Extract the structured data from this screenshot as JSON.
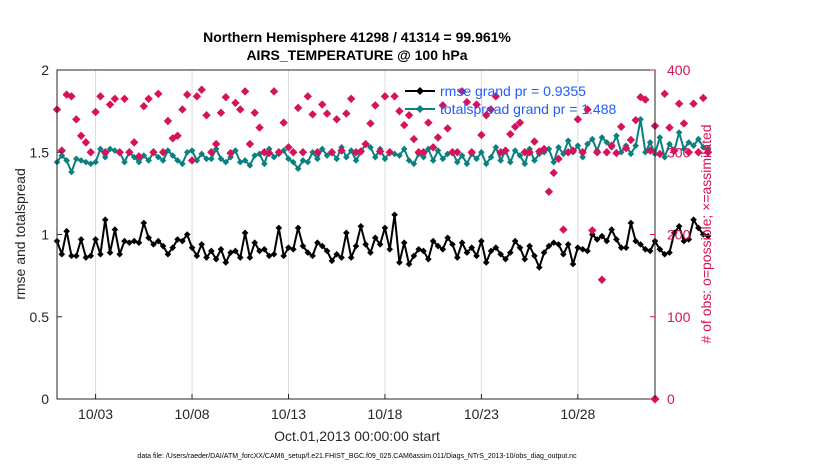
{
  "chart_data": {
    "type": "line",
    "title": "Northern Hemisphere 41298 / 41314 = 99.961%",
    "subtitle": "AIRS_TEMPERATURE @ 100 hPa",
    "xlabel": "Oct.01,2013 00:00:00 start",
    "ylabel_left": "rmse and totalspread",
    "ylabel_right": "# of obs: o=possible; ×=assimilated",
    "x_ticks": [
      "10/03",
      "10/08",
      "10/13",
      "10/18",
      "10/23",
      "10/28"
    ],
    "x_tick_days": [
      3,
      8,
      13,
      18,
      23,
      28
    ],
    "xlim_days": [
      1,
      32
    ],
    "ylim_left": [
      0,
      2
    ],
    "y_ticks_left": [
      "0",
      "0.5",
      "1",
      "1.5",
      "2"
    ],
    "ylim_right": [
      0,
      400
    ],
    "y_ticks_right": [
      "0",
      "100",
      "200",
      "300",
      "400"
    ],
    "grid": "vertical at x ticks",
    "legend_placement": "top-right",
    "colors": {
      "rmse": "#000000",
      "spread": "#0a8080",
      "obs": "#d6125a",
      "legend_text": "#1f5cff"
    },
    "series": [
      {
        "name": "rmse grand pr = 0.9355",
        "key": "rmse",
        "y_axis": "left",
        "x_start": 1,
        "x_step": 0.25,
        "values": [
          0.96,
          0.88,
          1.02,
          0.87,
          0.87,
          0.97,
          0.86,
          0.87,
          0.97,
          0.88,
          1.09,
          0.89,
          1.03,
          0.88,
          0.96,
          0.95,
          0.96,
          0.95,
          1.07,
          0.98,
          0.94,
          0.96,
          0.93,
          0.88,
          0.92,
          0.97,
          0.96,
          1.0,
          0.92,
          0.87,
          0.94,
          0.86,
          0.9,
          0.85,
          0.91,
          0.83,
          0.89,
          0.9,
          0.86,
          1.01,
          0.86,
          0.95,
          0.9,
          0.91,
          0.87,
          0.88,
          1.04,
          0.87,
          0.92,
          0.91,
          1.04,
          0.93,
          0.89,
          0.87,
          0.95,
          0.93,
          0.9,
          0.84,
          0.88,
          0.86,
          1.01,
          0.86,
          0.93,
          1.05,
          0.94,
          0.89,
          0.98,
          0.94,
          1.04,
          0.91,
          1.12,
          0.83,
          0.95,
          0.82,
          0.87,
          0.91,
          0.9,
          0.85,
          0.96,
          0.93,
          0.91,
          0.98,
          0.94,
          0.86,
          0.95,
          0.89,
          0.92,
          0.87,
          0.96,
          0.83,
          0.9,
          0.92,
          0.88,
          0.85,
          0.89,
          0.96,
          0.92,
          0.85,
          0.93,
          0.87,
          0.8,
          0.89,
          0.93,
          0.95,
          0.94,
          0.88,
          0.94,
          0.82,
          0.92,
          0.91,
          0.9,
          1.0,
          0.97,
          0.99,
          0.96,
          1.03,
          0.97,
          0.92,
          0.92,
          1.07,
          0.96,
          0.94,
          0.91,
          0.9,
          0.96,
          0.91,
          0.88,
          0.89,
          1.01,
          1.05,
          0.96,
          0.97,
          1.09,
          1.04,
          1.0,
          0.99
        ]
      },
      {
        "name": "totalspread grand pr = 1.488",
        "key": "spread",
        "y_axis": "left",
        "x_start": 1,
        "x_step": 0.25,
        "values": [
          1.44,
          1.48,
          1.45,
          1.38,
          1.46,
          1.45,
          1.44,
          1.43,
          1.44,
          1.52,
          1.47,
          1.52,
          1.51,
          1.5,
          1.44,
          1.5,
          1.47,
          1.44,
          1.48,
          1.45,
          1.5,
          1.47,
          1.45,
          1.51,
          1.48,
          1.45,
          1.43,
          1.5,
          1.51,
          1.45,
          1.49,
          1.46,
          1.46,
          1.52,
          1.46,
          1.44,
          1.47,
          1.51,
          1.44,
          1.45,
          1.42,
          1.48,
          1.49,
          1.43,
          1.52,
          1.47,
          1.49,
          1.51,
          1.46,
          1.44,
          1.4,
          1.45,
          1.44,
          1.5,
          1.46,
          1.52,
          1.48,
          1.5,
          1.46,
          1.53,
          1.47,
          1.51,
          1.45,
          1.5,
          1.55,
          1.53,
          1.47,
          1.52,
          1.46,
          1.5,
          1.49,
          1.48,
          1.52,
          1.45,
          1.43,
          1.49,
          1.47,
          1.52,
          1.45,
          1.51,
          1.46,
          1.49,
          1.5,
          1.44,
          1.48,
          1.43,
          1.49,
          1.46,
          1.5,
          1.43,
          1.47,
          1.53,
          1.45,
          1.51,
          1.44,
          1.51,
          1.48,
          1.43,
          1.52,
          1.45,
          1.49,
          1.5,
          1.52,
          1.44,
          1.53,
          1.49,
          1.57,
          1.5,
          1.54,
          1.47,
          1.55,
          1.58,
          1.51,
          1.59,
          1.56,
          1.53,
          1.6,
          1.5,
          1.54,
          1.49,
          1.54,
          1.7,
          1.5,
          1.56,
          1.49,
          1.59,
          1.47,
          1.55,
          1.51,
          1.62,
          1.52,
          1.56,
          1.54,
          1.58,
          1.53,
          1.52
        ]
      },
      {
        "name": "# of obs",
        "key": "obs",
        "y_axis": "right",
        "x_start": 1,
        "x_step": 0.25,
        "values": [
          352,
          302,
          370,
          368,
          340,
          320,
          312,
          300,
          349,
          368,
          300,
          358,
          365,
          300,
          365,
          300,
          312,
          295,
          356,
          365,
          300,
          371,
          300,
          338,
          317,
          320,
          352,
          370,
          290,
          368,
          376,
          345,
          300,
          310,
          348,
          367,
          299,
          360,
          352,
          374,
          310,
          348,
          330,
          300,
          299,
          374,
          300,
          336,
          306,
          300,
          354,
          300,
          368,
          346,
          300,
          358,
          347,
          300,
          340,
          302,
          347,
          365,
          300,
          301,
          310,
          335,
          357,
          301,
          368,
          300,
          368,
          350,
          333,
          345,
          316,
          300,
          300,
          336,
          306,
          318,
          357,
          329,
          300,
          300,
          374,
          361,
          300,
          358,
          321,
          345,
          352,
          368,
          300,
          302,
          322,
          331,
          336,
          300,
          300,
          313,
          301,
          304,
          252,
          275,
          292,
          206,
          300,
          302,
          340,
          300,
          352,
          205,
          300,
          145,
          300,
          308,
          299,
          331,
          305,
          315,
          339,
          367,
          364,
          302,
          332,
          298,
          371,
          330,
          302,
          359,
          335,
          300,
          359,
          300,
          366,
          300
        ]
      }
    ],
    "legend": [
      "rmse grand pr = 0.9355",
      "totalspread grand pr = 1.488"
    ]
  },
  "footer": "data file: /Users/raeder/DAI/ATM_forcXX/CAM6_setup/f.e21.FHIST_BGC.f09_025.CAM6assim.011/Diags_NTrS_2013-10/obs_diag_output.nc"
}
